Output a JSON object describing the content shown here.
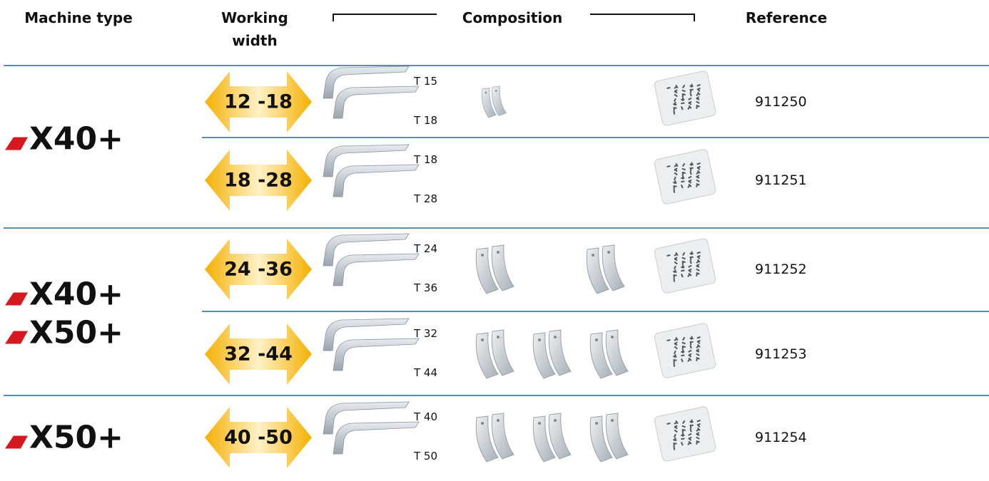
{
  "header": {
    "machine_type": "Machine type",
    "working_width": "Working width",
    "composition": "Composition",
    "reference": "Reference"
  },
  "groups": [
    {
      "machines": [
        "X40+"
      ],
      "rows": [
        {
          "width": "12 -18",
          "teeth": [
            "T 15",
            "T 18"
          ],
          "reference": "911250"
        },
        {
          "width": "18 -28",
          "teeth": [
            "T 18",
            "T 28"
          ],
          "reference": "911251"
        }
      ]
    },
    {
      "machines": [
        "X40+",
        "X50+"
      ],
      "rows": [
        {
          "width": "24 -36",
          "teeth": [
            "T 24",
            "T 36"
          ],
          "reference": "911252"
        },
        {
          "width": "32 -44",
          "teeth": [
            "T 32",
            "T 44"
          ],
          "reference": "911253"
        }
      ]
    },
    {
      "machines": [
        "X50+"
      ],
      "rows": [
        {
          "width": "40 -50",
          "teeth": [
            "T 40",
            "T 50"
          ],
          "reference": "911254"
        }
      ]
    }
  ]
}
